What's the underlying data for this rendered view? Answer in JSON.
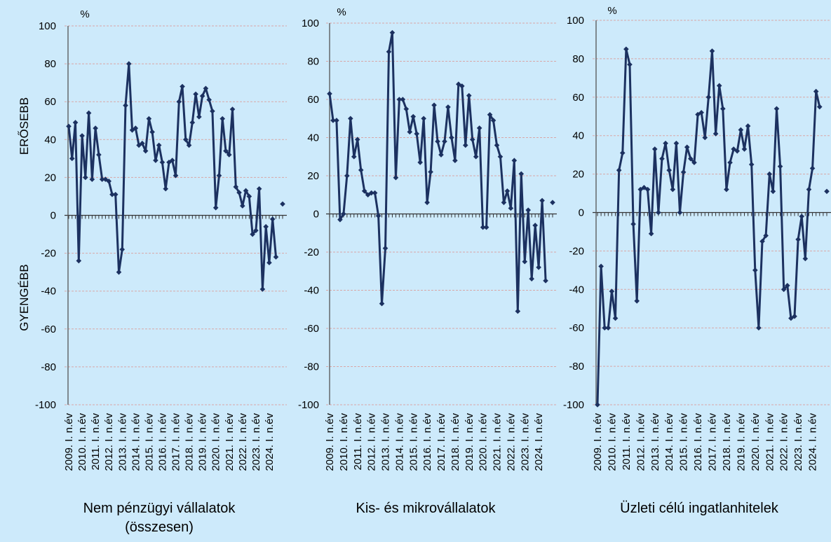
{
  "chart_data": [
    {
      "type": "line",
      "title": [
        "Nem pénzügyi vállalatok",
        "(összesen)"
      ],
      "y_unit": "%",
      "y_annotations": [
        "ERŐSEBB",
        "GYENGÉBB"
      ],
      "color": "#1c3160",
      "ylim": [
        -100,
        100
      ],
      "yticks": [
        -100,
        -80,
        -60,
        -40,
        -20,
        0,
        20,
        40,
        60,
        80,
        100
      ],
      "grid": true,
      "categories": [
        "2009. I. n.év",
        null,
        null,
        null,
        "2010. I. n.év",
        null,
        null,
        null,
        "2011. I. n.év",
        null,
        null,
        null,
        "2012. I. n.év",
        null,
        null,
        null,
        "2013. I. n.év",
        null,
        null,
        null,
        "2014. I. n.év",
        null,
        null,
        null,
        "2015. I. n.év",
        null,
        null,
        null,
        "2016. I. n.év",
        null,
        null,
        null,
        "2017. I. n.év",
        null,
        null,
        null,
        "2018. I. n.év",
        null,
        null,
        null,
        "2019. I. n.év",
        null,
        null,
        null,
        "2020. I. n.év",
        null,
        null,
        null,
        "2021. I. n.év",
        null,
        null,
        null,
        "2022. I. n.év",
        null,
        null,
        null,
        "2023. I. n.év",
        null,
        null,
        null,
        "2024. I. n.év",
        null,
        null,
        null,
        null
      ],
      "values": [
        47,
        30,
        49,
        -24,
        42,
        20,
        54,
        19,
        46,
        32,
        19,
        19,
        18,
        11,
        11,
        -30,
        -18,
        58,
        80,
        45,
        46,
        37,
        38,
        34,
        51,
        44,
        29,
        37,
        28,
        14,
        28,
        29,
        21,
        60,
        68,
        40,
        37,
        49,
        64,
        52,
        63,
        67,
        61,
        55,
        4,
        21,
        51,
        34,
        32,
        56,
        15,
        12,
        5,
        13,
        10,
        -10,
        -8,
        14,
        -39,
        -6,
        -25,
        -2,
        -22,
        null,
        6
      ]
    },
    {
      "type": "line",
      "title": [
        "Kis- és mikrovállalatok"
      ],
      "y_unit": "%",
      "color": "#1c3160",
      "ylim": [
        -100,
        100
      ],
      "yticks": [
        -100,
        -80,
        -60,
        -40,
        -20,
        0,
        20,
        40,
        60,
        80,
        100
      ],
      "grid": true,
      "categories": [
        "2009. I. n.év",
        null,
        null,
        null,
        "2010. I. n.év",
        null,
        null,
        null,
        "2011. I. n.év",
        null,
        null,
        null,
        "2012. I. n.év",
        null,
        null,
        null,
        "2013. I. n.év",
        null,
        null,
        null,
        "2014. I. n.év",
        null,
        null,
        null,
        "2015. I. n.év",
        null,
        null,
        null,
        "2016. I. n.év",
        null,
        null,
        null,
        "2017. I. n.év",
        null,
        null,
        null,
        "2018. I. n.év",
        null,
        null,
        null,
        "2019. I. n.év",
        null,
        null,
        null,
        "2020. I. n.év",
        null,
        null,
        null,
        "2021. I. n.év",
        null,
        null,
        null,
        "2022. I. n.év",
        null,
        null,
        null,
        "2023. I. n.év",
        null,
        null,
        null,
        "2024. I. n.év",
        null,
        null,
        null,
        null
      ],
      "values": [
        63,
        49,
        49,
        -3,
        0,
        20,
        50,
        30,
        39,
        23,
        12,
        10,
        11,
        11,
        -1,
        -47,
        -18,
        85,
        95,
        19,
        60,
        60,
        55,
        43,
        51,
        42,
        27,
        50,
        6,
        22,
        57,
        38,
        31,
        38,
        56,
        40,
        28,
        68,
        67,
        36,
        62,
        39,
        30,
        45,
        -7,
        -7,
        52,
        49,
        36,
        30,
        6,
        12,
        3,
        28,
        -51,
        21,
        -25,
        2,
        -34,
        -6,
        -28,
        7,
        -35,
        null,
        6
      ]
    },
    {
      "type": "line",
      "title": [
        "Üzleti célú ingatlanhitelek"
      ],
      "y_unit": "%",
      "color": "#1c3160",
      "ylim": [
        -100,
        100
      ],
      "yticks": [
        -100,
        -80,
        -60,
        -40,
        -20,
        0,
        20,
        40,
        60,
        80,
        100
      ],
      "grid": true,
      "categories": [
        "2009. I. n.év",
        null,
        null,
        null,
        "2010. I. n.év",
        null,
        null,
        null,
        "2011. I. n.év",
        null,
        null,
        null,
        "2012. I. n.év",
        null,
        null,
        null,
        "2013. I. n.év",
        null,
        null,
        null,
        "2014. I. n.év",
        null,
        null,
        null,
        "2015. I. n.év",
        null,
        null,
        null,
        "2016. I. n.év",
        null,
        null,
        null,
        "2017. I. n.év",
        null,
        null,
        null,
        "2018. I. n.év",
        null,
        null,
        null,
        "2019. I. n.év",
        null,
        null,
        null,
        "2020. I. n.év",
        null,
        null,
        null,
        "2021. I. n.év",
        null,
        null,
        null,
        "2022. I. n.év",
        null,
        null,
        null,
        "2023. I. n.év",
        null,
        null,
        null,
        "2024. I. n.év",
        null,
        null,
        null,
        null
      ],
      "values": [
        -100,
        -28,
        -60,
        -60,
        -41,
        -55,
        22,
        31,
        85,
        77,
        -6,
        -46,
        12,
        13,
        12,
        -11,
        33,
        0,
        28,
        36,
        22,
        12,
        36,
        0,
        21,
        34,
        28,
        26,
        51,
        52,
        39,
        60,
        84,
        41,
        66,
        54,
        12,
        26,
        33,
        32,
        43,
        33,
        45,
        25,
        -30,
        -60,
        -15,
        -12,
        20,
        11,
        54,
        24,
        -40,
        -38,
        -55,
        -54,
        -14,
        -2,
        -24,
        12,
        23,
        63,
        55,
        null,
        11
      ]
    }
  ]
}
